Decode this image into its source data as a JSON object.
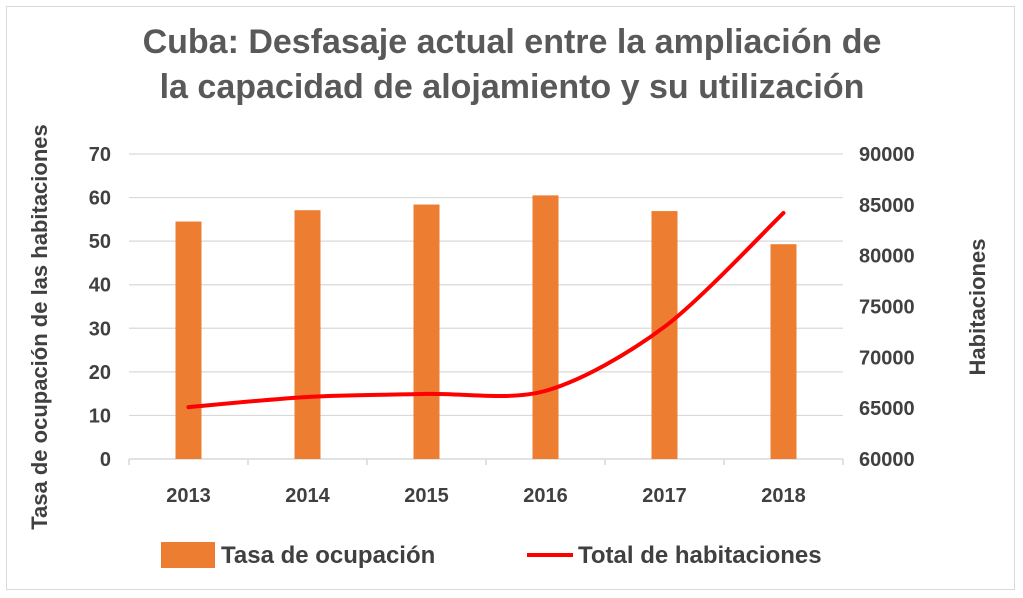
{
  "chart_data": {
    "type": "bar+line",
    "title_lines": [
      "Cuba: Desfasaje actual entre la ampliación de",
      "la capacidad de alojamiento y su utilización"
    ],
    "categories": [
      "2013",
      "2014",
      "2015",
      "2016",
      "2017",
      "2018"
    ],
    "y_left": {
      "label": "Tasa de ocupación de las habitaciones",
      "range": [
        0,
        70
      ],
      "ticks": [
        0,
        10,
        20,
        30,
        40,
        50,
        60,
        70
      ]
    },
    "y_right": {
      "label": "Habitaciones",
      "range": [
        60000,
        90000
      ],
      "ticks": [
        60000,
        65000,
        70000,
        75000,
        80000,
        85000,
        90000
      ]
    },
    "series": [
      {
        "name": "Tasa de ocupación",
        "type": "bar",
        "axis": "left",
        "color": "#ED7D31",
        "values": [
          54.5,
          57.1,
          58.4,
          60.5,
          56.9,
          49.3
        ]
      },
      {
        "name": "Total de habitaciones",
        "type": "line",
        "axis": "right",
        "color": "#FF0000",
        "values": [
          65100,
          66100,
          66400,
          66700,
          73000,
          84200
        ]
      }
    ],
    "grid": "horizontal",
    "legend_position": "bottom"
  }
}
